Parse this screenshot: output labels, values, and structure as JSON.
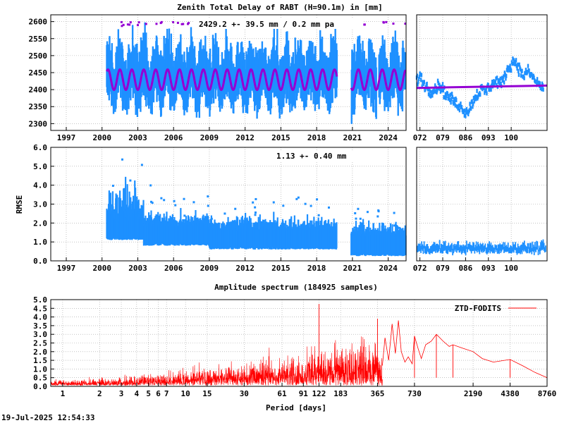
{
  "colors": {
    "ztd": "#1e90ff",
    "model": "#9400d3",
    "spectrum": "#ff0000",
    "grid": "#a0a0a0"
  },
  "chart_data": [
    {
      "id": "ztd",
      "type": "scatter",
      "title": "Zenith Total Delay of RABT (H=90.1m) in [mm]",
      "annotation": "2429.2 +-  39.5 mm /  0.2 mm pa",
      "ylim": [
        2280,
        2620
      ],
      "yticks": [
        "2300",
        "2350",
        "2400",
        "2450",
        "2500",
        "2550",
        "2600"
      ],
      "xlim": [
        1995.7,
        2025.5
      ],
      "xticks": [
        "1997",
        "2000",
        "2003",
        "2006",
        "2009",
        "2012",
        "2015",
        "2018",
        "2021",
        "2024"
      ],
      "data_start": 2000.4,
      "data_gap": [
        2019.7,
        2020.9
      ],
      "mean": 2429.2,
      "seasonal_amplitude": 30,
      "spread": 60,
      "series": [
        {
          "type": "scatter",
          "color": "ztd",
          "values_summary": "daily ZTD values, mean 2429.2 mm"
        },
        {
          "type": "line",
          "color": "model",
          "values_summary": "seasonal model, range ~2400-2460 mm"
        }
      ],
      "grid": true
    },
    {
      "id": "ztd-recent",
      "type": "scatter",
      "xlim": [
        71,
        111
      ],
      "xticks": [
        "072",
        "079",
        "086",
        "093",
        "100"
      ],
      "ylim": [
        2280,
        2620
      ],
      "trend_line": [
        [
          71,
          2405
        ],
        [
          111,
          2412
        ]
      ],
      "data": [
        [
          71,
          2425
        ],
        [
          72,
          2440
        ],
        [
          73,
          2420
        ],
        [
          74,
          2410
        ],
        [
          75,
          2395
        ],
        [
          76,
          2400
        ],
        [
          77,
          2405
        ],
        [
          78,
          2415
        ],
        [
          79,
          2400
        ],
        [
          80,
          2385
        ],
        [
          81,
          2375
        ],
        [
          82,
          2370
        ],
        [
          83,
          2360
        ],
        [
          84,
          2355
        ],
        [
          85,
          2345
        ],
        [
          86,
          2335
        ],
        [
          87,
          2340
        ],
        [
          88,
          2360
        ],
        [
          89,
          2380
        ],
        [
          90,
          2390
        ],
        [
          91,
          2400
        ],
        [
          92,
          2395
        ],
        [
          93,
          2405
        ],
        [
          94,
          2415
        ],
        [
          95,
          2420
        ],
        [
          96,
          2425
        ],
        [
          97,
          2415
        ],
        [
          98,
          2440
        ],
        [
          99,
          2460
        ],
        [
          100,
          2475
        ],
        [
          101,
          2485
        ],
        [
          102,
          2470
        ],
        [
          103,
          2450
        ],
        [
          104,
          2440
        ],
        [
          105,
          2455
        ],
        [
          106,
          2445
        ],
        [
          107,
          2430
        ],
        [
          108,
          2420
        ],
        [
          109,
          2410
        ],
        [
          110,
          2405
        ]
      ],
      "grid": true
    },
    {
      "id": "rmse",
      "type": "scatter",
      "ylabel": "RMSE",
      "annotation": "1.13 +-  0.40 mm",
      "ylim": [
        0,
        6
      ],
      "yticks": [
        "0.0",
        "1.0",
        "2.0",
        "3.0",
        "4.0",
        "5.0",
        "6.0"
      ],
      "xlim": [
        1995.7,
        2025.5
      ],
      "xticks": [
        "1997",
        "2000",
        "2003",
        "2006",
        "2009",
        "2012",
        "2015",
        "2018",
        "2021",
        "2024"
      ],
      "levels": [
        [
          2000.4,
          2003.5,
          1.6
        ],
        [
          2003.5,
          2009.0,
          1.3
        ],
        [
          2009.0,
          2019.7,
          1.1
        ],
        [
          2020.9,
          2025.5,
          0.75
        ]
      ],
      "grid": true
    },
    {
      "id": "rmse-recent",
      "type": "scatter",
      "xlim": [
        71,
        111
      ],
      "xticks": [
        "072",
        "079",
        "086",
        "093",
        "100"
      ],
      "ylim": [
        0,
        6
      ],
      "level": 0.62,
      "grid": true
    },
    {
      "id": "spectrum",
      "type": "line",
      "title": "Amplitude spectrum (184925 samples)",
      "xlabel": "Period [days]",
      "xlim": [
        0.8,
        8760
      ],
      "xscale": "log",
      "xticks": [
        "1",
        "2",
        "3",
        "4",
        "5",
        "6",
        "7",
        "10",
        "15",
        "30",
        "61",
        "91",
        "122",
        "183",
        "365",
        "730",
        "2190",
        "4380",
        "8760"
      ],
      "xtick_values": [
        1,
        2,
        3,
        4,
        5,
        6,
        7,
        10,
        15,
        30,
        61,
        91,
        122,
        183,
        365,
        730,
        2190,
        4380,
        8760
      ],
      "ylim": [
        0,
        5
      ],
      "yticks": [
        "0.0",
        "0.5",
        "1.0",
        "1.5",
        "2.0",
        "2.5",
        "3.0",
        "3.5",
        "4.0",
        "4.5",
        "5.0"
      ],
      "legend": {
        "label": "ZTD-FODITS",
        "placement": "top-right"
      },
      "peaks": [
        [
          122,
          4.75
        ],
        [
          365,
          3.9
        ],
        [
          730,
          2.9
        ],
        [
          1100,
          3.0
        ],
        [
          1500,
          2.4
        ],
        [
          4380,
          1.55
        ],
        [
          8760,
          0.5
        ]
      ],
      "grid": true
    }
  ],
  "footer": {
    "timestamp": "19-Jul-2025 12:54:33"
  }
}
